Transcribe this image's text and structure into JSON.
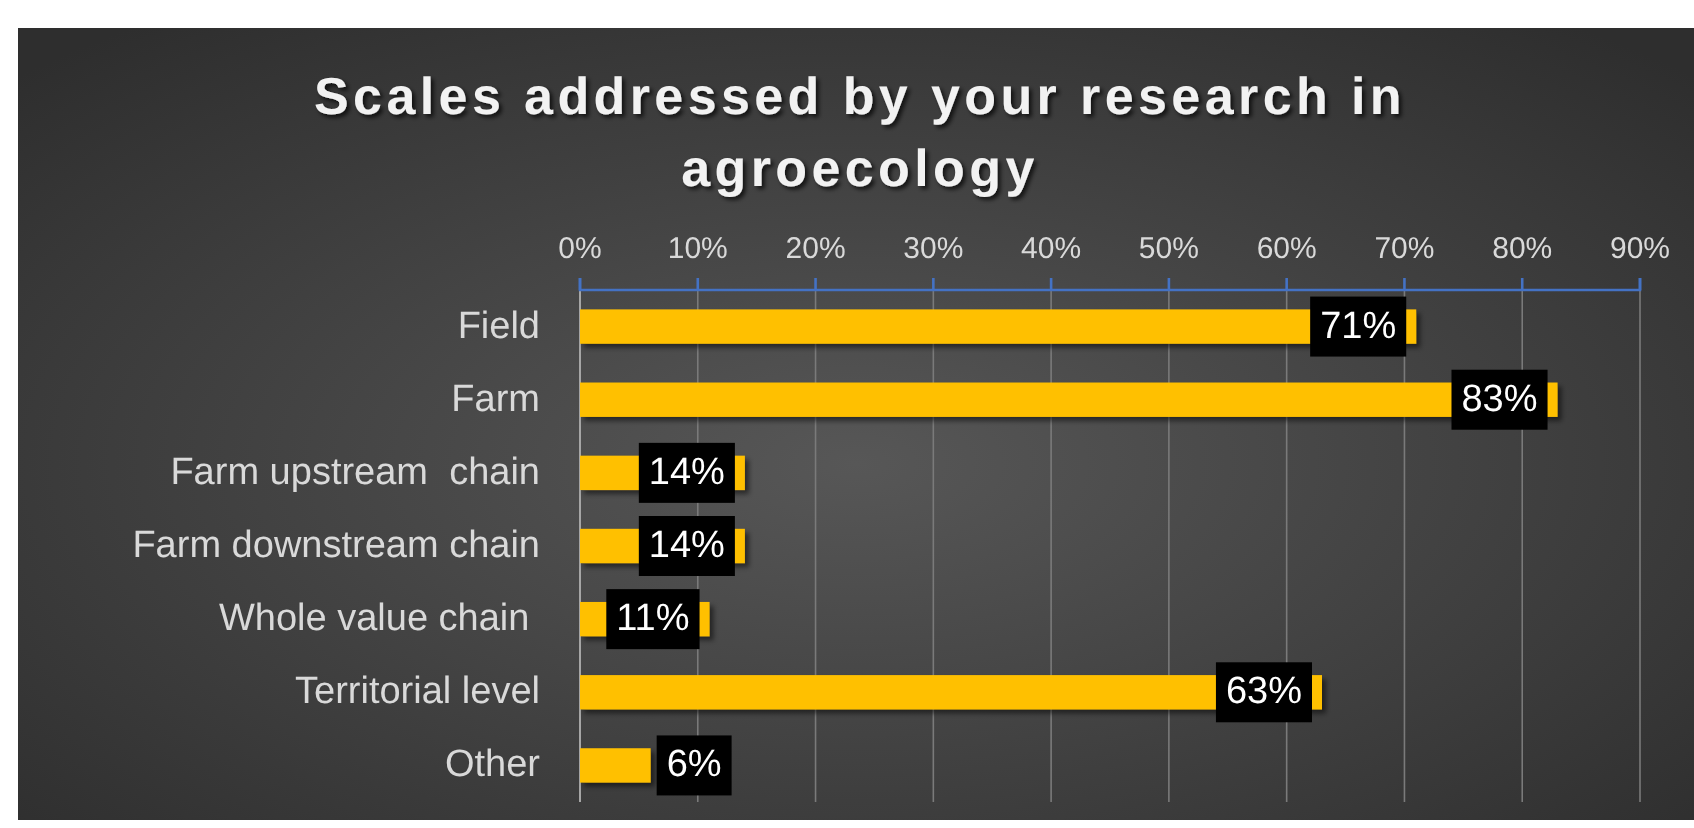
{
  "chart_data": {
    "type": "bar",
    "orientation": "horizontal",
    "title": "Scales addressed by your research in agroecology",
    "categories": [
      "Field",
      "Farm",
      "Farm upstream  chain",
      "Farm downstream chain",
      "Whole value chain ",
      "Territorial level",
      "Other"
    ],
    "values": [
      71,
      83,
      14,
      14,
      11,
      63,
      6
    ],
    "color": "#ffc000",
    "value_labels": [
      "71%",
      "83%",
      "14%",
      "14%",
      "11%",
      "63%",
      "6%"
    ],
    "xlim": [
      0,
      90
    ],
    "xticks": [
      {
        "value": 0,
        "label": "0%"
      },
      {
        "value": 10,
        "label": "10%"
      },
      {
        "value": 20,
        "label": "20%"
      },
      {
        "value": 30,
        "label": "30%"
      },
      {
        "value": 40,
        "label": "40%"
      },
      {
        "value": 50,
        "label": "50%"
      },
      {
        "value": 60,
        "label": "60%"
      },
      {
        "value": 70,
        "label": "70%"
      },
      {
        "value": 80,
        "label": "80%"
      },
      {
        "value": 90,
        "label": "90%"
      }
    ],
    "grid": "x"
  }
}
